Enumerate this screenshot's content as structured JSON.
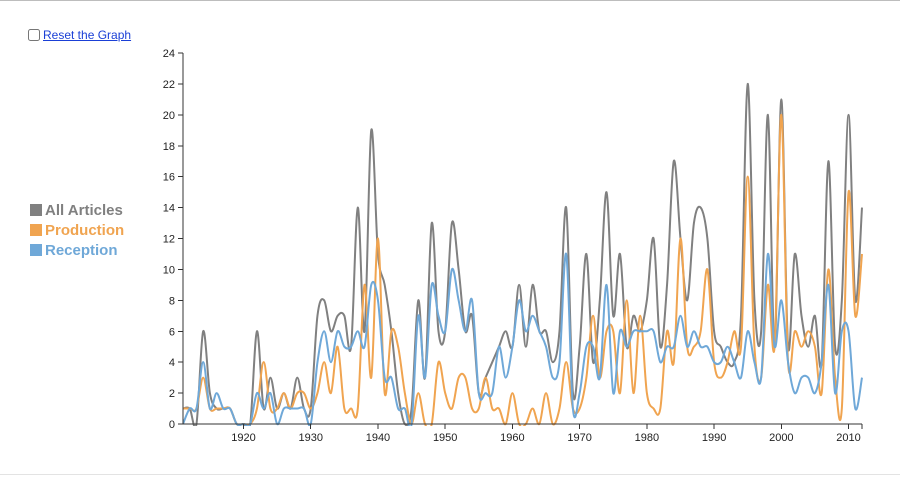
{
  "controls": {
    "reset_label": "Reset the Graph"
  },
  "colors": {
    "All Articles": "#808080",
    "Production": "#f0a450",
    "Reception": "#6fa8d8"
  },
  "chart_data": {
    "type": "line",
    "xlim": [
      1911,
      2012
    ],
    "ylim": [
      0,
      24
    ],
    "x_ticks": [
      1920,
      1930,
      1940,
      1950,
      1960,
      1970,
      1980,
      1990,
      2000,
      2010
    ],
    "y_ticks": [
      0,
      2,
      4,
      6,
      8,
      10,
      12,
      14,
      16,
      18,
      20,
      22,
      24
    ],
    "legend_position": "left",
    "series": [
      {
        "name": "All Articles",
        "points": [
          [
            1911,
            1
          ],
          [
            1912,
            1
          ],
          [
            1913,
            0
          ],
          [
            1914,
            6
          ],
          [
            1915,
            2
          ],
          [
            1916,
            1
          ],
          [
            1917,
            1
          ],
          [
            1918,
            1
          ],
          [
            1919,
            0
          ],
          [
            1920,
            0
          ],
          [
            1921,
            0
          ],
          [
            1922,
            6
          ],
          [
            1923,
            1
          ],
          [
            1924,
            3
          ],
          [
            1925,
            1
          ],
          [
            1926,
            2
          ],
          [
            1927,
            1
          ],
          [
            1928,
            3
          ],
          [
            1929,
            1
          ],
          [
            1930,
            1
          ],
          [
            1931,
            7
          ],
          [
            1932,
            8
          ],
          [
            1933,
            6
          ],
          [
            1934,
            7
          ],
          [
            1935,
            7
          ],
          [
            1936,
            5
          ],
          [
            1937,
            14
          ],
          [
            1938,
            6
          ],
          [
            1939,
            19
          ],
          [
            1940,
            11
          ],
          [
            1941,
            9
          ],
          [
            1942,
            6
          ],
          [
            1943,
            2
          ],
          [
            1944,
            0
          ],
          [
            1945,
            1
          ],
          [
            1946,
            8
          ],
          [
            1947,
            3
          ],
          [
            1948,
            13
          ],
          [
            1949,
            6
          ],
          [
            1950,
            6
          ],
          [
            1951,
            13
          ],
          [
            1952,
            10
          ],
          [
            1953,
            6
          ],
          [
            1954,
            7
          ],
          [
            1955,
            2
          ],
          [
            1956,
            3
          ],
          [
            1957,
            4
          ],
          [
            1958,
            5
          ],
          [
            1959,
            6
          ],
          [
            1960,
            5
          ],
          [
            1961,
            9
          ],
          [
            1962,
            5
          ],
          [
            1963,
            9
          ],
          [
            1964,
            6
          ],
          [
            1965,
            6
          ],
          [
            1966,
            4
          ],
          [
            1967,
            6
          ],
          [
            1968,
            14
          ],
          [
            1969,
            2
          ],
          [
            1970,
            5
          ],
          [
            1971,
            11
          ],
          [
            1972,
            4
          ],
          [
            1973,
            8
          ],
          [
            1974,
            15
          ],
          [
            1975,
            7
          ],
          [
            1976,
            11
          ],
          [
            1977,
            5
          ],
          [
            1978,
            7
          ],
          [
            1979,
            6
          ],
          [
            1980,
            8
          ],
          [
            1981,
            12
          ],
          [
            1982,
            5
          ],
          [
            1983,
            9
          ],
          [
            1984,
            17
          ],
          [
            1985,
            12
          ],
          [
            1986,
            8
          ],
          [
            1987,
            13
          ],
          [
            1988,
            14
          ],
          [
            1989,
            12
          ],
          [
            1990,
            6
          ],
          [
            1991,
            5
          ],
          [
            1992,
            4
          ],
          [
            1993,
            4
          ],
          [
            1994,
            7
          ],
          [
            1995,
            22
          ],
          [
            1996,
            8
          ],
          [
            1997,
            6
          ],
          [
            1998,
            20
          ],
          [
            1999,
            5
          ],
          [
            2000,
            21
          ],
          [
            2001,
            5
          ],
          [
            2002,
            11
          ],
          [
            2003,
            7
          ],
          [
            2004,
            5
          ],
          [
            2005,
            7
          ],
          [
            2006,
            4
          ],
          [
            2007,
            17
          ],
          [
            2008,
            5
          ],
          [
            2009,
            8
          ],
          [
            2010,
            20
          ],
          [
            2011,
            8
          ],
          [
            2012,
            14
          ]
        ]
      },
      {
        "name": "Production",
        "points": [
          [
            1911,
            1
          ],
          [
            1912,
            1
          ],
          [
            1913,
            1
          ],
          [
            1914,
            3
          ],
          [
            1915,
            1
          ],
          [
            1916,
            1
          ],
          [
            1917,
            1
          ],
          [
            1918,
            1
          ],
          [
            1919,
            0
          ],
          [
            1920,
            0
          ],
          [
            1921,
            0
          ],
          [
            1922,
            1
          ],
          [
            1923,
            4
          ],
          [
            1924,
            1
          ],
          [
            1925,
            1
          ],
          [
            1926,
            2
          ],
          [
            1927,
            1
          ],
          [
            1928,
            2
          ],
          [
            1929,
            2
          ],
          [
            1930,
            1
          ],
          [
            1931,
            2
          ],
          [
            1932,
            4
          ],
          [
            1933,
            2
          ],
          [
            1934,
            5
          ],
          [
            1935,
            1
          ],
          [
            1936,
            1
          ],
          [
            1937,
            1
          ],
          [
            1938,
            9
          ],
          [
            1939,
            3
          ],
          [
            1940,
            12
          ],
          [
            1941,
            2
          ],
          [
            1942,
            6
          ],
          [
            1943,
            5
          ],
          [
            1944,
            2
          ],
          [
            1945,
            0
          ],
          [
            1946,
            2
          ],
          [
            1947,
            0
          ],
          [
            1948,
            0
          ],
          [
            1949,
            4
          ],
          [
            1950,
            2
          ],
          [
            1951,
            1
          ],
          [
            1952,
            3
          ],
          [
            1953,
            3
          ],
          [
            1954,
            1
          ],
          [
            1955,
            1
          ],
          [
            1956,
            3
          ],
          [
            1957,
            1
          ],
          [
            1958,
            1
          ],
          [
            1959,
            0
          ],
          [
            1960,
            2
          ],
          [
            1961,
            0
          ],
          [
            1962,
            0
          ],
          [
            1963,
            1
          ],
          [
            1964,
            0
          ],
          [
            1965,
            2
          ],
          [
            1966,
            0
          ],
          [
            1967,
            1
          ],
          [
            1968,
            4
          ],
          [
            1969,
            1
          ],
          [
            1970,
            1
          ],
          [
            1971,
            3
          ],
          [
            1972,
            7
          ],
          [
            1973,
            3
          ],
          [
            1974,
            6
          ],
          [
            1975,
            6
          ],
          [
            1976,
            2
          ],
          [
            1977,
            8
          ],
          [
            1978,
            2
          ],
          [
            1979,
            7
          ],
          [
            1980,
            2
          ],
          [
            1981,
            1
          ],
          [
            1982,
            1
          ],
          [
            1983,
            6
          ],
          [
            1984,
            4
          ],
          [
            1985,
            12
          ],
          [
            1986,
            5
          ],
          [
            1987,
            5
          ],
          [
            1988,
            6
          ],
          [
            1989,
            10
          ],
          [
            1990,
            4
          ],
          [
            1991,
            3
          ],
          [
            1992,
            4
          ],
          [
            1993,
            6
          ],
          [
            1994,
            5
          ],
          [
            1995,
            16
          ],
          [
            1996,
            5
          ],
          [
            1997,
            3
          ],
          [
            1998,
            9
          ],
          [
            1999,
            5
          ],
          [
            2000,
            20
          ],
          [
            2001,
            4
          ],
          [
            2002,
            6
          ],
          [
            2003,
            5
          ],
          [
            2004,
            6
          ],
          [
            2005,
            5
          ],
          [
            2006,
            2
          ],
          [
            2007,
            10
          ],
          [
            2008,
            3
          ],
          [
            2009,
            1
          ],
          [
            2010,
            15
          ],
          [
            2011,
            7
          ],
          [
            2012,
            11
          ]
        ]
      },
      {
        "name": "Reception",
        "points": [
          [
            1911,
            0
          ],
          [
            1912,
            1
          ],
          [
            1913,
            1
          ],
          [
            1914,
            4
          ],
          [
            1915,
            1
          ],
          [
            1916,
            2
          ],
          [
            1917,
            1
          ],
          [
            1918,
            1
          ],
          [
            1919,
            0
          ],
          [
            1920,
            0
          ],
          [
            1921,
            0
          ],
          [
            1922,
            2
          ],
          [
            1923,
            1
          ],
          [
            1924,
            2
          ],
          [
            1925,
            0
          ],
          [
            1926,
            1
          ],
          [
            1927,
            1
          ],
          [
            1928,
            1
          ],
          [
            1929,
            1
          ],
          [
            1930,
            0
          ],
          [
            1931,
            4
          ],
          [
            1932,
            6
          ],
          [
            1933,
            4
          ],
          [
            1934,
            6
          ],
          [
            1935,
            5
          ],
          [
            1936,
            5
          ],
          [
            1937,
            6
          ],
          [
            1938,
            5
          ],
          [
            1939,
            9
          ],
          [
            1940,
            8
          ],
          [
            1941,
            3
          ],
          [
            1942,
            3
          ],
          [
            1943,
            1
          ],
          [
            1944,
            1
          ],
          [
            1945,
            0
          ],
          [
            1946,
            7
          ],
          [
            1947,
            3
          ],
          [
            1948,
            9
          ],
          [
            1949,
            7
          ],
          [
            1950,
            6
          ],
          [
            1951,
            10
          ],
          [
            1952,
            8
          ],
          [
            1953,
            6
          ],
          [
            1954,
            8
          ],
          [
            1955,
            2
          ],
          [
            1956,
            2
          ],
          [
            1957,
            2
          ],
          [
            1958,
            5
          ],
          [
            1959,
            3
          ],
          [
            1960,
            5
          ],
          [
            1961,
            8
          ],
          [
            1962,
            6
          ],
          [
            1963,
            7
          ],
          [
            1964,
            6
          ],
          [
            1965,
            5
          ],
          [
            1966,
            3
          ],
          [
            1967,
            4
          ],
          [
            1968,
            11
          ],
          [
            1969,
            1
          ],
          [
            1970,
            2
          ],
          [
            1971,
            5
          ],
          [
            1972,
            5
          ],
          [
            1973,
            3
          ],
          [
            1974,
            9
          ],
          [
            1975,
            2
          ],
          [
            1976,
            6
          ],
          [
            1977,
            5
          ],
          [
            1978,
            6
          ],
          [
            1979,
            6
          ],
          [
            1980,
            6
          ],
          [
            1981,
            6
          ],
          [
            1982,
            4
          ],
          [
            1983,
            5
          ],
          [
            1984,
            5
          ],
          [
            1985,
            7
          ],
          [
            1986,
            5
          ],
          [
            1987,
            6
          ],
          [
            1988,
            5
          ],
          [
            1989,
            5
          ],
          [
            1990,
            4
          ],
          [
            1991,
            4
          ],
          [
            1992,
            5
          ],
          [
            1993,
            4
          ],
          [
            1994,
            3
          ],
          [
            1995,
            6
          ],
          [
            1996,
            4
          ],
          [
            1997,
            3
          ],
          [
            1998,
            11
          ],
          [
            1999,
            5
          ],
          [
            2000,
            8
          ],
          [
            2001,
            4
          ],
          [
            2002,
            2
          ],
          [
            2003,
            3
          ],
          [
            2004,
            3
          ],
          [
            2005,
            2
          ],
          [
            2006,
            4
          ],
          [
            2007,
            9
          ],
          [
            2008,
            2
          ],
          [
            2009,
            6
          ],
          [
            2010,
            6
          ],
          [
            2011,
            1
          ],
          [
            2012,
            3
          ]
        ]
      }
    ]
  }
}
